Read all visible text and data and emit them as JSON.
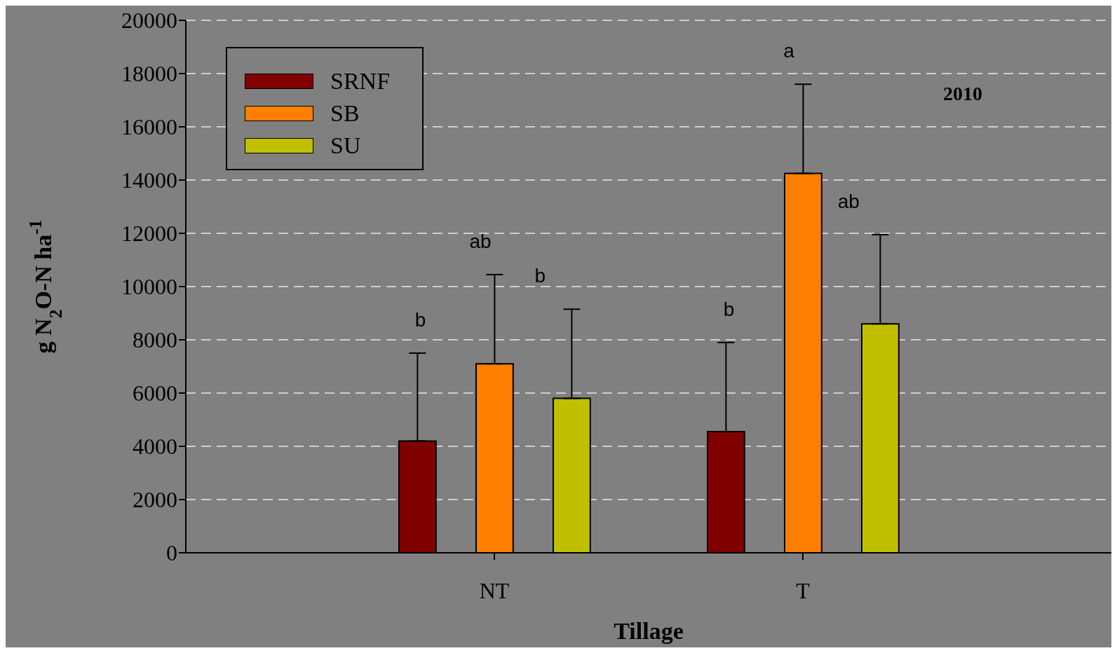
{
  "chart_data": {
    "type": "bar",
    "xlabel": "Tillage",
    "ylabel": "g N$_{2}$O-N ha$^{-1}$",
    "categories": [
      "NT",
      "T"
    ],
    "series": [
      {
        "name": "SRNF",
        "color": "#800000",
        "values": [
          4200,
          4550
        ],
        "errors": [
          [
            4200,
            7500
          ],
          [
            4550,
            7900
          ]
        ]
      },
      {
        "name": "SB",
        "color": "#ff8000",
        "values": [
          7100,
          14250
        ],
        "errors": [
          [
            7100,
            10450
          ],
          [
            14250,
            17600
          ]
        ]
      },
      {
        "name": "SU",
        "color": "#c0c000",
        "values": [
          5800,
          8600
        ],
        "errors": [
          [
            5800,
            9150
          ],
          [
            8600,
            11950
          ]
        ]
      }
    ],
    "ylim": [
      0,
      20000
    ],
    "yticks": [
      0,
      2000,
      4000,
      6000,
      8000,
      10000,
      12000,
      14000,
      16000,
      18000,
      20000
    ],
    "grid": "y",
    "legend": "top left",
    "annotations": [
      "b",
      "ab",
      "b",
      "b",
      "a",
      "ab",
      "2010"
    ]
  }
}
